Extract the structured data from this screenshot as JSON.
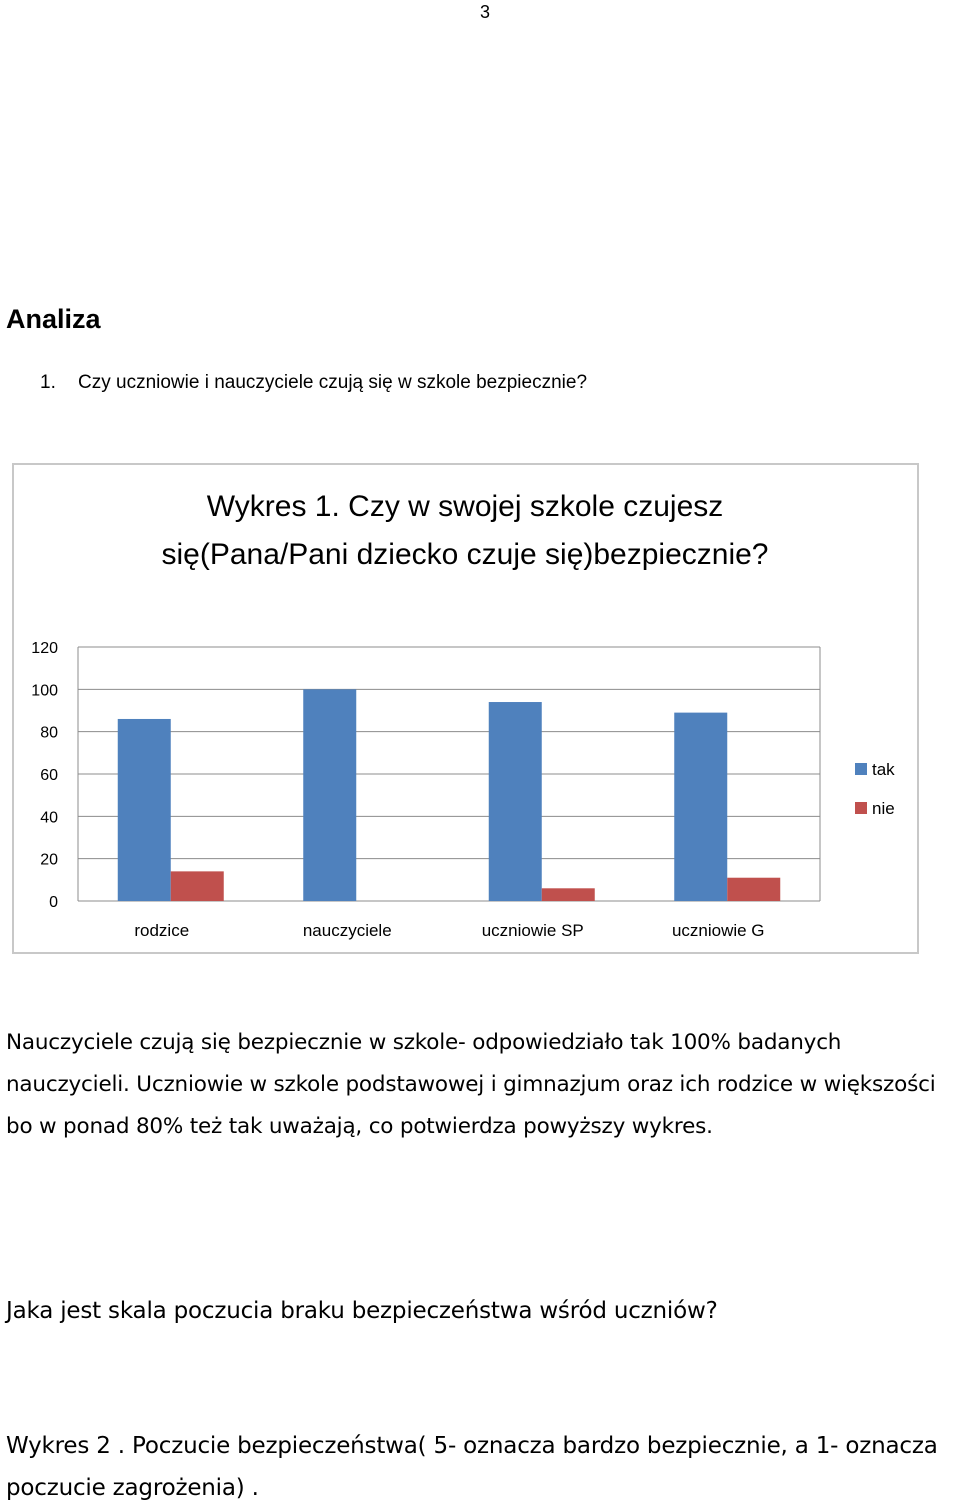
{
  "page_number": "3",
  "section_heading": "Analiza",
  "question1": {
    "number": "1.",
    "text": "Czy uczniowie i nauczyciele czują się w szkole bezpiecznie?"
  },
  "chart_data": {
    "type": "bar",
    "title": "Wykres 1. Czy w swojej szkole czujesz się(Pana/Pani dziecko czuje się)bezpiecznie?",
    "categories": [
      "rodzice",
      "nauczyciele",
      "uczniowie SP",
      "uczniowie G"
    ],
    "series": [
      {
        "name": "tak",
        "color": "#4f81bd",
        "values": [
          86,
          100,
          94,
          89
        ]
      },
      {
        "name": "nie",
        "color": "#c0504d",
        "values": [
          14,
          0,
          6,
          11
        ]
      }
    ],
    "ylim": [
      0,
      120
    ],
    "yticks": [
      0,
      20,
      40,
      60,
      80,
      100,
      120
    ],
    "grid": true,
    "legend": "right"
  },
  "paragraph": "Nauczyciele czują się bezpiecznie w szkole- odpowiedziało tak 100% badanych nauczycieli. Uczniowie w szkole podstawowej i gimnazjum oraz ich rodzice w większości bo w ponad 80% też tak uważają, co potwierdza powyższy wykres.",
  "question2": "Jaka jest skala poczucia braku bezpieczeństwa wśród uczniów?",
  "figure2_caption": "Wykres 2 . Poczucie bezpieczeństwa( 5- oznacza bardzo bezpiecznie, a 1- oznacza poczucie zagrożenia) ."
}
